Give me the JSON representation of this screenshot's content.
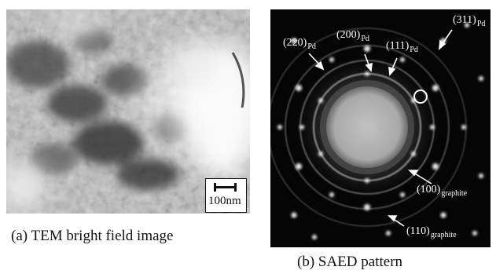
{
  "panel_a": {
    "caption": "(a) TEM bright field image",
    "scale_label": "100nm"
  },
  "panel_b": {
    "caption": "(b) SAED pattern",
    "labels": {
      "l220": {
        "main": "(220)",
        "sub": "Pd"
      },
      "l200": {
        "main": "(200)",
        "sub": "Pd"
      },
      "l111": {
        "main": "(111)",
        "sub": "Pd"
      },
      "l311": {
        "main": "(311)",
        "sub": "Pd"
      },
      "l100": {
        "main": "(100)",
        "sub": "graphite"
      },
      "l110": {
        "main": "(110)",
        "sub": "graphite"
      }
    }
  }
}
